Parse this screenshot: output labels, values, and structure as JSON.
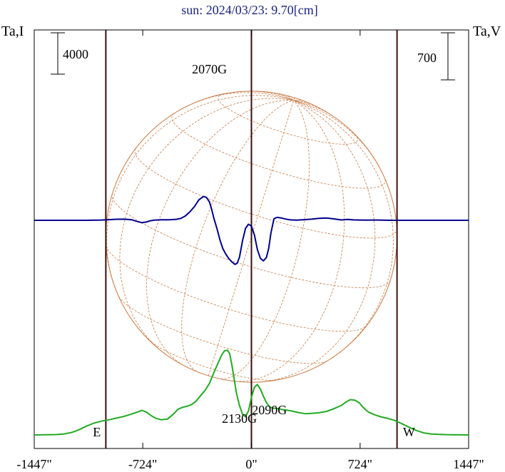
{
  "chart_data": {
    "type": "line",
    "title": "sun: 2024/03/23: 9.70[cm]",
    "ylabel_left": "Ta,I",
    "ylabel_right": "Ta,V",
    "scale_bar_left": "4000",
    "scale_bar_right": "700",
    "x_unit": "arcsec",
    "xlim": [
      -1447,
      1447
    ],
    "x_ticks": [
      {
        "value": -1447,
        "label": "-1447\""
      },
      {
        "value": -724,
        "label": "-724\""
      },
      {
        "value": 0,
        "label": "0\""
      },
      {
        "value": 724,
        "label": "724\""
      },
      {
        "value": 1447,
        "label": "1447\""
      }
    ],
    "vertical_lines_x": [
      -970,
      0,
      970
    ],
    "limb_labels": [
      {
        "text": "E",
        "x": -1030
      },
      {
        "text": "W",
        "x": 1050
      }
    ],
    "solar_disk": {
      "center_x": 0,
      "radius_x": 970,
      "color": "#b5651d"
    },
    "annotations": [
      {
        "text": "2070G",
        "x": -280
      },
      {
        "text": "2130G",
        "x": -80
      },
      {
        "text": "2090G",
        "x": 120
      }
    ],
    "colors": {
      "I": "#00008b",
      "V": "#22aa22",
      "grid": "#c87a44",
      "frame": "#000000",
      "lines": "#3a0f0f",
      "title": "#1a237e"
    },
    "series": [
      {
        "name": "I",
        "x": [
          -1447,
          -1100,
          -1000,
          -950,
          -900,
          -850,
          -800,
          -760,
          -730,
          -700,
          -680,
          -650,
          -600,
          -550,
          -500,
          -470,
          -440,
          -410,
          -380,
          -350,
          -320,
          -300,
          -280,
          -265,
          -250,
          -230,
          -210,
          -190,
          -170,
          -150,
          -130,
          -110,
          -95,
          -80,
          -60,
          -40,
          -20,
          0,
          20,
          40,
          60,
          80,
          100,
          115,
          130,
          150,
          170,
          200,
          230,
          260,
          300,
          350,
          400,
          450,
          500,
          550,
          600,
          640,
          680,
          720,
          760,
          800,
          850,
          900,
          950,
          1000,
          1100,
          1447
        ],
        "y": [
          0,
          0,
          25,
          60,
          105,
          110,
          60,
          -120,
          -230,
          -165,
          -60,
          15,
          45,
          55,
          95,
          185,
          420,
          820,
          1320,
          1980,
          2300,
          2220,
          1780,
          1080,
          180,
          -780,
          -1880,
          -2750,
          -3280,
          -3720,
          -4020,
          -4260,
          -4150,
          -3580,
          -2020,
          -800,
          -380,
          -560,
          -1420,
          -2850,
          -3680,
          -3920,
          -3600,
          -2720,
          -1200,
          150,
          280,
          220,
          120,
          40,
          20,
          60,
          110,
          190,
          230,
          140,
          35,
          85,
          40,
          25,
          20,
          30,
          25,
          5,
          0,
          0,
          0,
          0
        ]
      },
      {
        "name": "V",
        "x": [
          -1447,
          -1300,
          -1250,
          -1200,
          -1150,
          -1100,
          -1050,
          -1000,
          -950,
          -900,
          -850,
          -800,
          -760,
          -730,
          -700,
          -670,
          -640,
          -600,
          -560,
          -520,
          -490,
          -460,
          -430,
          -400,
          -370,
          -340,
          -310,
          -280,
          -260,
          -240,
          -220,
          -200,
          -180,
          -160,
          -145,
          -130,
          -115,
          -100,
          -80,
          -60,
          -40,
          -20,
          0,
          20,
          40,
          60,
          80,
          100,
          120,
          140,
          160,
          180,
          200,
          230,
          260,
          290,
          320,
          360,
          400,
          450,
          500,
          550,
          600,
          630,
          660,
          690,
          720,
          740,
          760,
          780,
          820,
          860,
          900,
          950,
          1000,
          1050,
          1100,
          1150,
          1200,
          1250,
          1300,
          1447
        ],
        "y": [
          0,
          5,
          15,
          35,
          75,
          130,
          175,
          205,
          225,
          250,
          275,
          310,
          340,
          365,
          340,
          290,
          250,
          225,
          235,
          310,
          380,
          410,
          425,
          450,
          500,
          580,
          660,
          765,
          875,
          980,
          1080,
          1180,
          1250,
          1260,
          1210,
          1040,
          830,
          620,
          440,
          310,
          270,
          355,
          560,
          710,
          750,
          680,
          575,
          480,
          420,
          400,
          395,
          390,
          380,
          370,
          360,
          345,
          330,
          315,
          320,
          330,
          350,
          390,
          440,
          490,
          525,
          515,
          475,
          420,
          375,
          340,
          300,
          270,
          250,
          220,
          170,
          115,
          65,
          30,
          14,
          8,
          4,
          0
        ]
      }
    ]
  }
}
